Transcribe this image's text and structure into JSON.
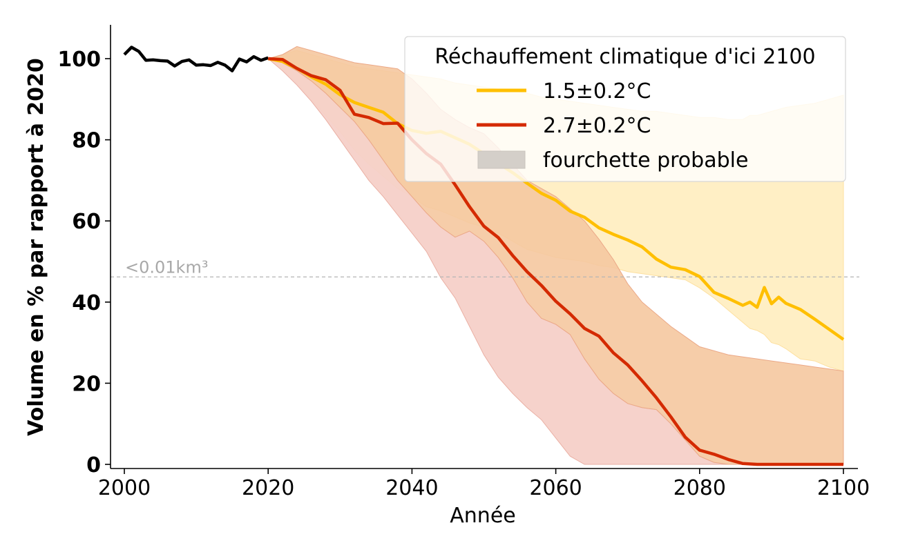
{
  "chart_data": {
    "type": "line",
    "title": "",
    "xlabel": "Année",
    "ylabel": "Volume en % par rapport à 2020",
    "xlim": [
      1998,
      2102
    ],
    "ylim": [
      -1,
      108
    ],
    "x_ticks": [
      2000,
      2020,
      2040,
      2060,
      2080,
      2100
    ],
    "y_ticks": [
      0,
      20,
      40,
      60,
      80,
      100
    ],
    "grid": false,
    "reference_line": {
      "y": 46.2,
      "label": "<0.01km³",
      "color": "#b5b5b5"
    },
    "legend": {
      "title": "Réchauffement climatique d'ici 2100",
      "position": "top-right",
      "entries": [
        {
          "label": "1.5±0.2°C",
          "kind": "line",
          "color": "#ffbf00"
        },
        {
          "label": "2.7±0.2°C",
          "kind": "line",
          "color": "#d42a00"
        },
        {
          "label": "fourchette probable",
          "kind": "patch",
          "color": "#d4cfc9"
        }
      ]
    },
    "observed": {
      "color": "#000000",
      "x": [
        2000,
        2001,
        2002,
        2003,
        2004,
        2005,
        2006,
        2007,
        2008,
        2009,
        2010,
        2011,
        2012,
        2013,
        2014,
        2015,
        2016,
        2017,
        2018,
        2019,
        2020
      ],
      "y": [
        101,
        102.8,
        101.8,
        99.6,
        99.7,
        99.5,
        99.4,
        98.2,
        99.3,
        99.7,
        98.4,
        98.5,
        98.3,
        99.1,
        98.4,
        97,
        99.9,
        99.2,
        100.5,
        99.6,
        100.2
      ]
    },
    "series": [
      {
        "name": "1.5±0.2°C",
        "color": "#ffbf00",
        "band_color": "#ffedbf",
        "x": [
          2020,
          2022,
          2024,
          2026,
          2028,
          2030,
          2032,
          2034,
          2036,
          2038,
          2040,
          2042,
          2044,
          2046,
          2048,
          2050,
          2052,
          2054,
          2056,
          2058,
          2060,
          2062,
          2064,
          2066,
          2068,
          2070,
          2072,
          2074,
          2076,
          2078,
          2080,
          2082,
          2084,
          2086,
          2087,
          2088,
          2089,
          2090,
          2091,
          2092,
          2094,
          2096,
          2098,
          2100
        ],
        "y": [
          100,
          99.3,
          97.6,
          95.5,
          93.7,
          91.1,
          89.2,
          88,
          86.8,
          84,
          82.3,
          81.6,
          82.1,
          80.5,
          78.9,
          76.6,
          74.2,
          71.9,
          69.3,
          66.8,
          65.1,
          62.4,
          60.9,
          58.3,
          56.7,
          55.3,
          53.6,
          50.6,
          48.6,
          48,
          46.3,
          42.4,
          40.9,
          39.2,
          40,
          38.7,
          43.6,
          39.6,
          41.2,
          39.7,
          38.2,
          35.8,
          33.3,
          30.8
        ],
        "band_low": [
          100,
          97.5,
          94,
          90,
          86,
          82,
          77.5,
          74,
          71,
          68,
          66,
          63.5,
          62.5,
          61,
          59.5,
          58.5,
          57,
          55,
          53,
          52,
          51,
          50.5,
          50,
          49,
          48.5,
          47.5,
          47,
          46.5,
          46,
          45.5,
          43.5,
          41,
          38,
          35,
          33.5,
          33,
          32,
          30,
          29.5,
          28.5,
          26,
          25.5,
          24,
          23
        ],
        "band_high": [
          100,
          101,
          102,
          101,
          100,
          99,
          98,
          97.5,
          97,
          96.5,
          96,
          95.5,
          95,
          94,
          93.5,
          93,
          92.5,
          92,
          91.5,
          90.5,
          90,
          89.5,
          89,
          88.5,
          88,
          87.5,
          87,
          87,
          86.5,
          86,
          85.5,
          85.5,
          85,
          85,
          86,
          86,
          86.5,
          87,
          87.5,
          88,
          88.5,
          89,
          90,
          91
        ]
      },
      {
        "name": "2.7±0.2°C",
        "color": "#d42a00",
        "band_color": "#f5c8a0",
        "band_low_color": "#f5d0c8",
        "x": [
          2020,
          2022,
          2024,
          2026,
          2028,
          2030,
          2032,
          2034,
          2036,
          2038,
          2040,
          2042,
          2044,
          2046,
          2048,
          2050,
          2052,
          2054,
          2056,
          2058,
          2060,
          2062,
          2064,
          2066,
          2068,
          2070,
          2072,
          2074,
          2076,
          2078,
          2080,
          2082,
          2084,
          2086,
          2088,
          2090,
          2092,
          2094,
          2096,
          2098,
          2100
        ],
        "y": [
          100,
          99.8,
          97.6,
          95.8,
          94.8,
          92.2,
          86.3,
          85.5,
          84,
          84.1,
          80,
          76.6,
          74,
          68.9,
          63.5,
          58.7,
          55.9,
          51.5,
          47.5,
          44.1,
          40.2,
          37.1,
          33.5,
          31.6,
          27.5,
          24.5,
          20.6,
          16.4,
          11.7,
          6.7,
          3.5,
          2.5,
          1.2,
          0.2,
          0,
          0,
          0,
          0,
          0,
          0,
          0
        ],
        "band_low": [
          100,
          97,
          93.5,
          89.5,
          85,
          80,
          75,
          70,
          66,
          61.5,
          57,
          52.5,
          46,
          41,
          34,
          27,
          21.5,
          17.5,
          14,
          11,
          6.5,
          2,
          0,
          0,
          0,
          0,
          0,
          0,
          0,
          0,
          0,
          0,
          0,
          0,
          0,
          0,
          0,
          0,
          0,
          0,
          0
        ],
        "band_mid_low": [
          100,
          99,
          97,
          94.5,
          91.5,
          88,
          84.5,
          80,
          75,
          70,
          66,
          62,
          58.5,
          56,
          57.5,
          55,
          51,
          46,
          40,
          36,
          34.5,
          32,
          26,
          21,
          17.5,
          15,
          14,
          13.5,
          10,
          6,
          2,
          0.5,
          0,
          0,
          0,
          0,
          0,
          0,
          0,
          0,
          0
        ],
        "band_high": [
          100,
          101,
          103,
          102,
          101,
          100,
          99,
          98.5,
          98,
          97.5,
          95,
          91.5,
          87.5,
          85,
          83,
          81.5,
          78,
          74,
          70,
          68,
          66,
          63,
          60,
          55.5,
          50.5,
          44.5,
          40,
          37,
          34,
          31.5,
          29,
          28,
          27,
          26.5,
          26,
          25.5,
          25,
          24.5,
          24,
          23.5,
          23
        ]
      }
    ]
  }
}
